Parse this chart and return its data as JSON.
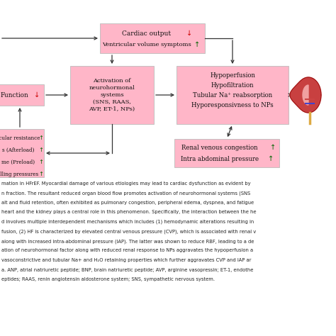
{
  "bg_color": "#ffffff",
  "box_fill": "#ffb6c8",
  "box_edge": "#bbbbbb",
  "caption_lines": [
    "mation in HFrEF. Myocardial damage of various etiologies may lead to cardiac dysfunction as evident by",
    "n fraction. The resultant reduced organ blood flow promotes activation of neurohormonal systems (SNS",
    "alt and fluid retention, often exhibited as pulmonary congestion, peripheral edema, dyspnea, and fatigue",
    "heart and the kidney plays a central role in this phenomenon. Specifically, the interaction between the he",
    "d involves multiple interdependent mechanisms which includes (1) hemodynamic alterations resulting in",
    "fusion, (2) HF is characterized by elevated central venous pressure (CVP), which is associated with renal v",
    "along with increased intra-abdominal pressure (IAP). The latter was shown to reduce RBF, leading to a de",
    "ation of neurohormonal factor along with reduced renal response to NPs aggravates the hypoperfusion a",
    "vasoconstrictive and tubular Na+ and H₂O retaining properties which further aggravates CVP and IAP ar",
    "a. ANP, atrial natriuretic peptide; BNP, brain natriuretic peptide; AVP, arginine vasopressin; ET-1, endothe",
    "eptides; RAAS, renin angiotensin aldosterone system; SNS, sympathetic nervous system."
  ]
}
